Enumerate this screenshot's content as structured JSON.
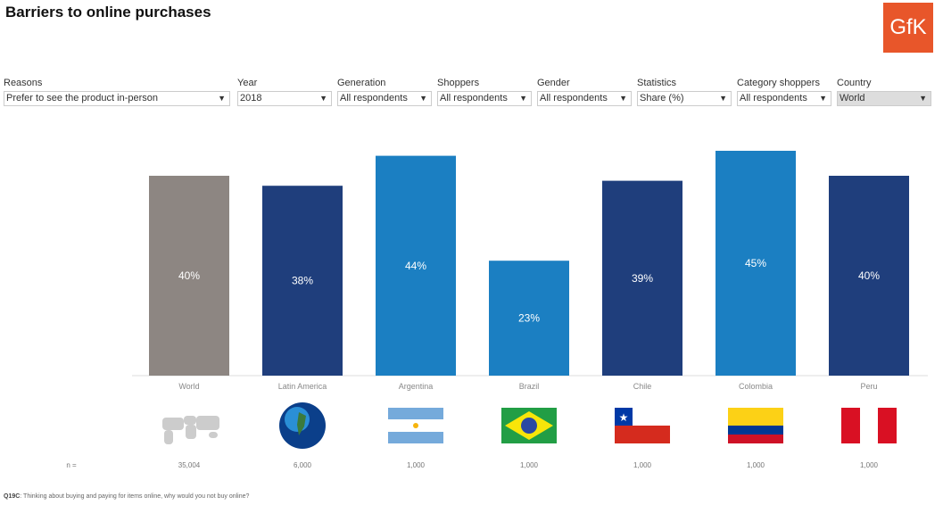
{
  "title": "Barriers to online purchases",
  "logo": "GfK",
  "filters": [
    {
      "label": "Reasons",
      "value": "Prefer to see the product in-person"
    },
    {
      "label": "Year",
      "value": "2018"
    },
    {
      "label": "Generation",
      "value": "All respondents"
    },
    {
      "label": "Shoppers",
      "value": "All respondents"
    },
    {
      "label": "Gender",
      "value": "All respondents"
    },
    {
      "label": "Statistics",
      "value": "Share (%)"
    },
    {
      "label": "Category shoppers",
      "value": "All respondents"
    },
    {
      "label": "Country",
      "value": "World"
    }
  ],
  "chart_data": {
    "type": "bar",
    "categories": [
      "World",
      "Latin America",
      "Argentina",
      "Brazil",
      "Chile",
      "Colombia",
      "Peru"
    ],
    "values": [
      40,
      38,
      44,
      23,
      39,
      45,
      40
    ],
    "data_labels": [
      "40%",
      "38%",
      "44%",
      "23%",
      "39%",
      "45%",
      "40%"
    ],
    "colors": [
      "#8d8682",
      "#1f3e7c",
      "#1b7fc2",
      "#1b7fc2",
      "#1f3e7c",
      "#1b7fc2",
      "#1f3e7c"
    ],
    "n_label": "n =",
    "n_values": [
      "35,004",
      "6,000",
      "1,000",
      "1,000",
      "1,000",
      "1,000",
      "1,000"
    ],
    "icons": [
      "world-map",
      "globe",
      "flag-argentina",
      "flag-brazil",
      "flag-chile",
      "flag-colombia",
      "flag-peru"
    ]
  },
  "footnote": {
    "code": "Q19C",
    "text": ": Thinking about buying and paying for items online, why would you not buy online?"
  }
}
